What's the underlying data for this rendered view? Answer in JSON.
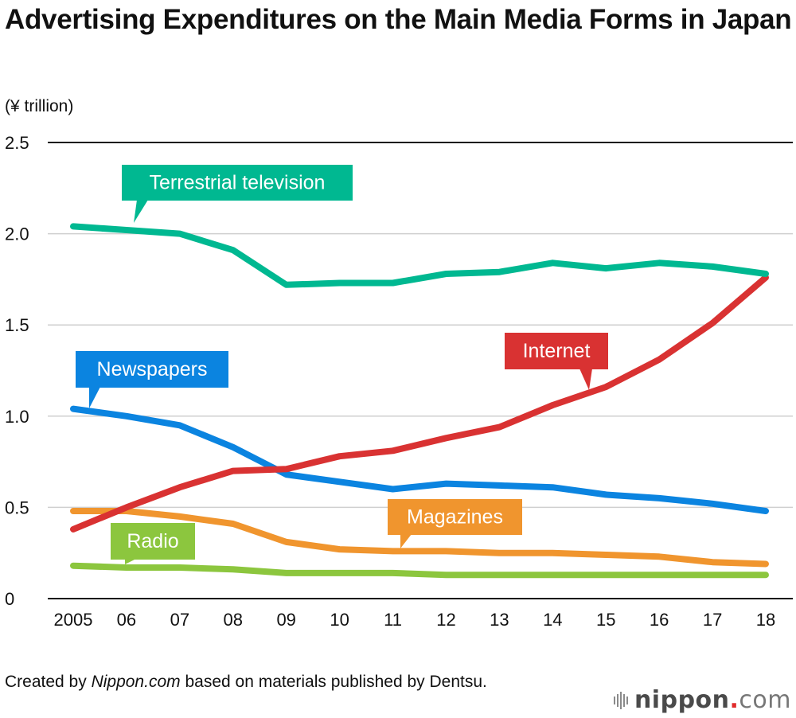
{
  "title": "Advertising Expenditures on the Main Media Forms in Japan",
  "footer": {
    "prefix": "Created by ",
    "source_italic": "Nippon.com",
    "suffix": " based on materials published by Dentsu."
  },
  "logo": {
    "name": "nippon",
    "dot": ".",
    "tld": "com",
    "dot_color": "#e02b2b"
  },
  "chart_data": {
    "type": "line",
    "title": "Advertising Expenditures on the Main Media Forms in Japan",
    "xlabel": "",
    "ylabel": "(¥ trillion)",
    "x": [
      "2005",
      "06",
      "07",
      "08",
      "09",
      "10",
      "11",
      "12",
      "13",
      "14",
      "15",
      "16",
      "17",
      "18"
    ],
    "ylim": [
      0,
      2.5
    ],
    "yticks": [
      0,
      0.5,
      1.0,
      1.5,
      2.0,
      2.5
    ],
    "ytick_labels": [
      "0",
      "0.5",
      "1.0",
      "1.5",
      "2.0",
      "2.5"
    ],
    "grid": true,
    "legend": "inline-callouts",
    "series": [
      {
        "name": "Terrestrial television",
        "color": "#00b891",
        "values": [
          2.04,
          2.02,
          2.0,
          1.91,
          1.72,
          1.73,
          1.73,
          1.78,
          1.79,
          1.84,
          1.81,
          1.84,
          1.82,
          1.78
        ]
      },
      {
        "name": "Internet",
        "color": "#d93232",
        "values": [
          0.38,
          0.5,
          0.61,
          0.7,
          0.71,
          0.78,
          0.81,
          0.88,
          0.94,
          1.06,
          1.16,
          1.31,
          1.51,
          1.76
        ]
      },
      {
        "name": "Newspapers",
        "color": "#0b84e0",
        "values": [
          1.04,
          1.0,
          0.95,
          0.83,
          0.68,
          0.64,
          0.6,
          0.63,
          0.62,
          0.61,
          0.57,
          0.55,
          0.52,
          0.48
        ]
      },
      {
        "name": "Magazines",
        "color": "#f0952e",
        "values": [
          0.48,
          0.48,
          0.45,
          0.41,
          0.31,
          0.27,
          0.26,
          0.26,
          0.25,
          0.25,
          0.24,
          0.23,
          0.2,
          0.19
        ]
      },
      {
        "name": "Radio",
        "color": "#8cc63e",
        "values": [
          0.18,
          0.17,
          0.17,
          0.16,
          0.14,
          0.14,
          0.14,
          0.13,
          0.13,
          0.13,
          0.13,
          0.13,
          0.13,
          0.13
        ]
      }
    ]
  }
}
